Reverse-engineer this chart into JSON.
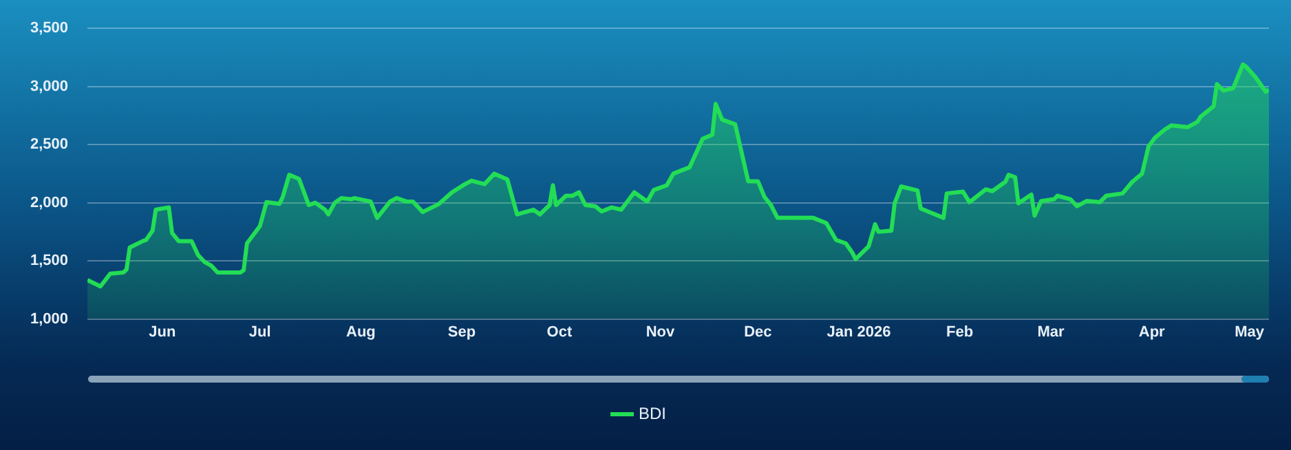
{
  "chart_data": {
    "type": "area",
    "x": [
      "2025-05-09",
      "2025-05-13",
      "2025-05-16",
      "2025-05-20",
      "2025-05-21",
      "2025-05-22",
      "2025-05-26",
      "2025-05-27",
      "2025-05-29",
      "2025-05-30",
      "2025-06-03",
      "2025-06-04",
      "2025-06-06",
      "2025-06-10",
      "2025-06-12",
      "2025-06-14",
      "2025-06-16",
      "2025-06-18",
      "2025-06-22",
      "2025-06-25",
      "2025-06-26",
      "2025-06-27",
      "2025-07-01",
      "2025-07-03",
      "2025-07-07",
      "2025-07-08",
      "2025-07-10",
      "2025-07-13",
      "2025-07-16",
      "2025-07-18",
      "2025-07-21",
      "2025-07-22",
      "2025-07-24",
      "2025-07-26",
      "2025-07-29",
      "2025-07-30",
      "2025-08-04",
      "2025-08-06",
      "2025-08-10",
      "2025-08-12",
      "2025-08-15",
      "2025-08-17",
      "2025-08-20",
      "2025-08-25",
      "2025-08-29",
      "2025-09-02",
      "2025-09-04",
      "2025-09-08",
      "2025-09-11",
      "2025-09-15",
      "2025-09-18",
      "2025-09-23",
      "2025-09-25",
      "2025-09-28",
      "2025-09-29",
      "2025-09-30",
      "2025-10-03",
      "2025-10-05",
      "2025-10-07",
      "2025-10-09",
      "2025-10-12",
      "2025-10-14",
      "2025-10-17",
      "2025-10-20",
      "2025-10-24",
      "2025-10-28",
      "2025-10-30",
      "2025-11-03",
      "2025-11-05",
      "2025-11-10",
      "2025-11-14",
      "2025-11-17",
      "2025-11-18",
      "2025-11-20",
      "2025-11-24",
      "2025-11-28",
      "2025-12-01",
      "2025-12-03",
      "2025-12-05",
      "2025-12-07",
      "2025-12-18",
      "2025-12-22",
      "2025-12-25",
      "2025-12-28",
      "2025-12-30",
      "2025-12-31",
      "2026-01-04",
      "2026-01-06",
      "2026-01-07",
      "2026-01-11",
      "2026-01-12",
      "2026-01-14",
      "2026-01-19",
      "2026-01-20",
      "2026-01-27",
      "2026-01-28",
      "2026-02-02",
      "2026-02-04",
      "2026-02-09",
      "2026-02-11",
      "2026-02-15",
      "2026-02-16",
      "2026-02-18",
      "2026-02-19",
      "2026-02-23",
      "2026-02-24",
      "2026-02-26",
      "2026-03-02",
      "2026-03-03",
      "2026-03-07",
      "2026-03-09",
      "2026-03-12",
      "2026-03-16",
      "2026-03-18",
      "2026-03-23",
      "2026-03-26",
      "2026-03-29",
      "2026-03-31",
      "2026-04-02",
      "2026-04-05",
      "2026-04-07",
      "2026-04-12",
      "2026-04-15",
      "2026-04-16",
      "2026-04-20",
      "2026-04-21",
      "2026-04-23",
      "2026-04-26",
      "2026-04-29",
      "2026-04-30",
      "2026-05-03",
      "2026-05-06",
      "2026-05-07"
    ],
    "series": [
      {
        "name": "BDI",
        "color": "#22dd55",
        "values": [
          1335,
          1280,
          1390,
          1400,
          1425,
          1615,
          1670,
          1680,
          1760,
          1940,
          1960,
          1740,
          1670,
          1670,
          1550,
          1490,
          1460,
          1400,
          1400,
          1400,
          1420,
          1650,
          1800,
          2005,
          1990,
          2050,
          2240,
          2205,
          1980,
          2000,
          1940,
          1900,
          2000,
          2040,
          2030,
          2040,
          2010,
          1870,
          2010,
          2040,
          2010,
          2010,
          1920,
          1990,
          2090,
          2160,
          2190,
          2160,
          2250,
          2200,
          1900,
          1940,
          1900,
          1980,
          2150,
          1980,
          2060,
          2060,
          2090,
          1980,
          1970,
          1925,
          1960,
          1940,
          2090,
          2010,
          2110,
          2150,
          2250,
          2305,
          2550,
          2585,
          2850,
          2715,
          2675,
          2185,
          2185,
          2050,
          1980,
          1870,
          1870,
          1825,
          1680,
          1650,
          1570,
          1515,
          1625,
          1815,
          1750,
          1760,
          1995,
          2140,
          2105,
          1950,
          1870,
          2080,
          2095,
          2005,
          2115,
          2100,
          2180,
          2240,
          2220,
          1995,
          2070,
          1890,
          2015,
          2030,
          2060,
          2030,
          1970,
          2015,
          2005,
          2060,
          2080,
          2180,
          2250,
          2485,
          2560,
          2630,
          2665,
          2650,
          2695,
          2740,
          2830,
          3020,
          2965,
          2985,
          3190,
          3170,
          3075,
          2955,
          2975
        ]
      }
    ],
    "xlim": [
      "2025-05-09",
      "2026-05-07"
    ],
    "xticks": [
      {
        "value": "2025-06-01",
        "label": "Jun"
      },
      {
        "value": "2025-07-01",
        "label": "Jul"
      },
      {
        "value": "2025-08-01",
        "label": "Aug"
      },
      {
        "value": "2025-09-01",
        "label": "Sep"
      },
      {
        "value": "2025-10-01",
        "label": "Oct"
      },
      {
        "value": "2025-11-01",
        "label": "Nov"
      },
      {
        "value": "2025-12-01",
        "label": "Dec"
      },
      {
        "value": "2026-01-01",
        "label": "Jan 2026"
      },
      {
        "value": "2026-02-01",
        "label": "Feb"
      },
      {
        "value": "2026-03-01",
        "label": "Mar"
      },
      {
        "value": "2026-04-01",
        "label": "Apr"
      },
      {
        "value": "2026-05-01",
        "label": "May"
      }
    ],
    "ylim": [
      1000,
      3500
    ],
    "yticks": [
      {
        "value": 1000,
        "label": "1,000"
      },
      {
        "value": 1500,
        "label": "1,500"
      },
      {
        "value": 2000,
        "label": "2,000"
      },
      {
        "value": 2500,
        "label": "2,500"
      },
      {
        "value": 3000,
        "label": "3,000"
      },
      {
        "value": 3500,
        "label": "3,500"
      }
    ],
    "grid": "y",
    "legend": "bottom",
    "marker": "none",
    "line_style": "solid"
  }
}
